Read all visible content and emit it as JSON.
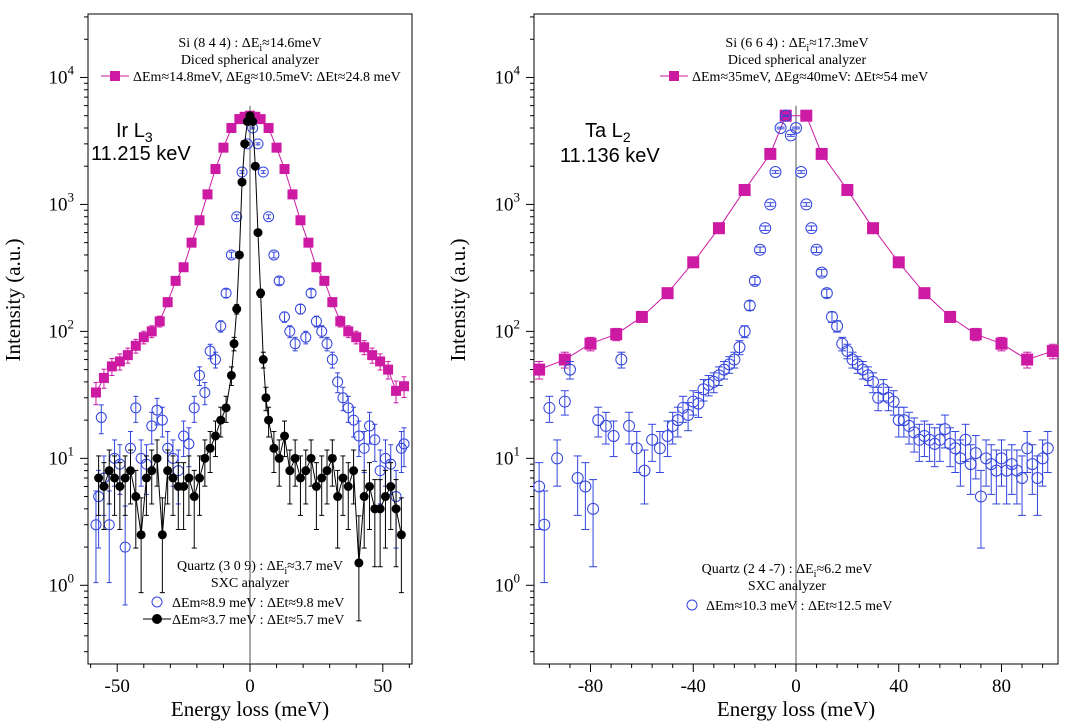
{
  "colors": {
    "magenta": "#cc1aa3",
    "blue": "#3344dd",
    "black": "#000000"
  },
  "chart_data": [
    {
      "type": "scatter",
      "ylabel": "Intensity (a.u.)",
      "xlabel": "Energy loss (meV)",
      "xlim": [
        -61,
        61
      ],
      "ylim_log10": [
        -0.62,
        4.5
      ],
      "x_ticks": [
        {
          "v": -50,
          "label": "-50"
        },
        {
          "v": 0,
          "label": "0"
        },
        {
          "v": 50,
          "label": "50"
        }
      ],
      "y_ticks": [
        {
          "e": 0,
          "base": "10",
          "exp": "0"
        },
        {
          "e": 1,
          "base": "10",
          "exp": "1"
        },
        {
          "e": 2,
          "base": "10",
          "exp": "2"
        },
        {
          "e": 3,
          "base": "10",
          "exp": "3"
        },
        {
          "e": 4,
          "base": "10",
          "exp": "4"
        }
      ],
      "label_line1": "Ir L",
      "label_sub": "3",
      "label_line2": "11.215 keV",
      "top_ann": {
        "title_a": "Si (8 4 4) : ΔE",
        "title_sub": "i",
        "title_b": "≈14.6meV",
        "line2": "Diced spherical analyzer",
        "line3": "ΔEm≈14.8meV, ΔEg≈10.5meV: ΔEt≈24.8 meV"
      },
      "bottom_ann": {
        "title_a": "Quartz (3 0 9) : ΔE",
        "title_sub": "i",
        "title_b": "≈3.7 meV",
        "line2": "SXC analyzer",
        "legend_blue": "ΔEm≈8.9 meV : ΔEt≈9.8 meV",
        "legend_black": "ΔEm≈3.7 meV : ΔEt≈5.7 meV"
      },
      "series": [
        {
          "name": "Si (8 4 4) diced spherical analyzer",
          "marker": "square",
          "color": "#cc1aa3",
          "x": [
            -58,
            -55,
            -52,
            -49,
            -46,
            -43,
            -40,
            -37,
            -34,
            -31,
            -28,
            -25,
            -22,
            -19,
            -16,
            -13,
            -10,
            -7,
            -4,
            -2,
            0,
            2,
            4,
            7,
            10,
            13,
            16,
            19,
            22,
            25,
            28,
            31,
            34,
            37,
            40,
            43,
            46,
            49,
            52,
            55,
            58
          ],
          "y": [
            33,
            43,
            53,
            58,
            65,
            77,
            90,
            100,
            120,
            170,
            250,
            320,
            500,
            750,
            1200,
            1900,
            2800,
            4000,
            4700,
            4900,
            5000,
            4900,
            4700,
            4000,
            2800,
            1900,
            1200,
            750,
            500,
            320,
            250,
            170,
            120,
            100,
            90,
            75,
            65,
            58,
            50,
            34,
            37
          ]
        },
        {
          "name": "Quartz (3 0 9) ΔEm≈8.9 meV",
          "marker": "open-circle",
          "color": "#3344dd",
          "x": [
            -58,
            -57,
            -56,
            -55,
            -53,
            -51,
            -49,
            -47,
            -45,
            -43,
            -41,
            -39,
            -37,
            -35,
            -33,
            -31,
            -29,
            -27,
            -25,
            -23,
            -21,
            -19,
            -17,
            -15,
            -13,
            -11,
            -9,
            -7,
            -5,
            -3,
            -1,
            1,
            3,
            5,
            7,
            9,
            11,
            13,
            15,
            17,
            19,
            21,
            23,
            25,
            27,
            29,
            31,
            33,
            35,
            37,
            39,
            41,
            43,
            45,
            47,
            49,
            51,
            53,
            55,
            57,
            58
          ],
          "y": [
            3,
            5,
            21,
            7,
            3,
            10,
            9,
            2,
            12,
            25,
            10,
            9,
            18,
            24,
            20,
            12,
            10,
            8,
            15,
            13,
            25,
            45,
            33,
            70,
            60,
            110,
            200,
            400,
            800,
            1800,
            3000,
            4000,
            3000,
            1800,
            800,
            400,
            250,
            130,
            100,
            80,
            150,
            90,
            200,
            120,
            100,
            80,
            60,
            40,
            30,
            25,
            20,
            15,
            12,
            18,
            14,
            8,
            10,
            9,
            5,
            12,
            13
          ]
        },
        {
          "name": "Quartz (3 0 9) ΔEm≈3.7 meV",
          "marker": "filled-circle",
          "color": "#000000",
          "x": [
            -57,
            -55,
            -53,
            -51,
            -49,
            -47,
            -45,
            -43,
            -41,
            -39,
            -37,
            -35,
            -33,
            -31,
            -29,
            -27,
            -25,
            -23,
            -21,
            -19,
            -17,
            -15,
            -13,
            -11,
            -9,
            -7,
            -6,
            -5,
            -4,
            -3,
            -2,
            -1,
            0,
            1,
            2,
            3,
            4,
            5,
            6,
            7,
            9,
            11,
            13,
            15,
            17,
            19,
            21,
            23,
            25,
            27,
            29,
            31,
            33,
            35,
            37,
            39,
            41,
            43,
            45,
            47,
            49,
            51,
            53,
            55,
            57
          ],
          "y": [
            7,
            6,
            8,
            7,
            6,
            7,
            8,
            5,
            2.5,
            7,
            8,
            10,
            2.5,
            8,
            7,
            6,
            6,
            7,
            5,
            7,
            10,
            12,
            15,
            20,
            25,
            45,
            80,
            150,
            400,
            1500,
            3000,
            4500,
            5000,
            4500,
            2000,
            600,
            200,
            60,
            30,
            20,
            12,
            10,
            15,
            8,
            10,
            7,
            8,
            10,
            6,
            7,
            8,
            10,
            5,
            7,
            6,
            8,
            1.5,
            5,
            6,
            4,
            4,
            5,
            6,
            4,
            2.5
          ]
        }
      ]
    },
    {
      "type": "scatter",
      "ylabel": "Intensity (a.u.)",
      "xlabel": "Energy loss (meV)",
      "xlim": [
        -102,
        102
      ],
      "ylim_log10": [
        -0.62,
        4.5
      ],
      "x_ticks": [
        {
          "v": -80,
          "label": "-80"
        },
        {
          "v": -40,
          "label": "-40"
        },
        {
          "v": 0,
          "label": "0"
        },
        {
          "v": 40,
          "label": "40"
        },
        {
          "v": 80,
          "label": "80"
        }
      ],
      "y_ticks": [
        {
          "e": 0,
          "base": "10",
          "exp": "0"
        },
        {
          "e": 1,
          "base": "10",
          "exp": "1"
        },
        {
          "e": 2,
          "base": "10",
          "exp": "2"
        },
        {
          "e": 3,
          "base": "10",
          "exp": "3"
        },
        {
          "e": 4,
          "base": "10",
          "exp": "4"
        }
      ],
      "label_line1": "Ta L",
      "label_sub": "2",
      "label_line2": "11.136 keV",
      "top_ann": {
        "title_a": "Si (6 6 4) : ΔE",
        "title_sub": "i",
        "title_b": "≈17.3meV",
        "line2": "Diced spherical analyzer",
        "line3": "ΔEm≈35meV, ΔEg≈40meV: ΔEt≈54 meV"
      },
      "bottom_ann": {
        "title_a": "Quartz (2 4 -7) : ΔE",
        "title_sub": "i",
        "title_b": "≈6.2 meV",
        "line2": "SXC analyzer",
        "legend_blue": "ΔEm≈10.3 meV : ΔEt≈12.5 meV"
      },
      "series": [
        {
          "name": "Si (6 6 4) diced spherical analyzer",
          "marker": "square",
          "color": "#cc1aa3",
          "x": [
            -100,
            -90,
            -80,
            -70,
            -60,
            -50,
            -40,
            -30,
            -20,
            -10,
            -4,
            4,
            10,
            20,
            30,
            40,
            50,
            60,
            70,
            80,
            90,
            100
          ],
          "y": [
            50,
            60,
            80,
            95,
            130,
            200,
            350,
            650,
            1300,
            2500,
            5000,
            5000,
            2500,
            1300,
            650,
            350,
            200,
            130,
            95,
            80,
            60,
            70
          ]
        },
        {
          "name": "Quartz (2 4 -7) ΔEm≈10.3 meV",
          "marker": "open-circle",
          "color": "#3344dd",
          "x": [
            -100,
            -98,
            -96,
            -93,
            -90,
            -88,
            -85,
            -82,
            -79,
            -77,
            -74,
            -71,
            -68,
            -65,
            -62,
            -59,
            -56,
            -53,
            -50,
            -48,
            -46,
            -44,
            -42,
            -40,
            -38,
            -36,
            -34,
            -32,
            -30,
            -28,
            -26,
            -24,
            -22,
            -20,
            -18,
            -16,
            -14,
            -12,
            -10,
            -8,
            -6,
            -4,
            -2,
            0,
            2,
            4,
            6,
            8,
            10,
            12,
            14,
            16,
            18,
            20,
            22,
            24,
            26,
            28,
            30,
            32,
            34,
            36,
            38,
            40,
            42,
            44,
            46,
            48,
            50,
            52,
            54,
            56,
            58,
            60,
            62,
            64,
            66,
            68,
            70,
            72,
            74,
            76,
            78,
            80,
            82,
            84,
            86,
            88,
            90,
            92,
            94,
            96,
            98
          ],
          "y": [
            6,
            3,
            25,
            10,
            28,
            50,
            7,
            6,
            4,
            20,
            18,
            15,
            60,
            18,
            12,
            8,
            14,
            12,
            15,
            18,
            20,
            25,
            22,
            28,
            27,
            35,
            38,
            40,
            45,
            50,
            55,
            60,
            75,
            100,
            160,
            250,
            440,
            650,
            1000,
            1800,
            4000,
            5000,
            3500,
            4000,
            1800,
            1000,
            650,
            440,
            290,
            200,
            130,
            110,
            80,
            70,
            60,
            55,
            50,
            45,
            40,
            30,
            35,
            30,
            28,
            20,
            20,
            18,
            16,
            14,
            15,
            14,
            13,
            14,
            17,
            13,
            12,
            10,
            14,
            9,
            11,
            5,
            10,
            9,
            8,
            10,
            8,
            9,
            8,
            7,
            12,
            9,
            7,
            10,
            12
          ]
        }
      ]
    }
  ]
}
